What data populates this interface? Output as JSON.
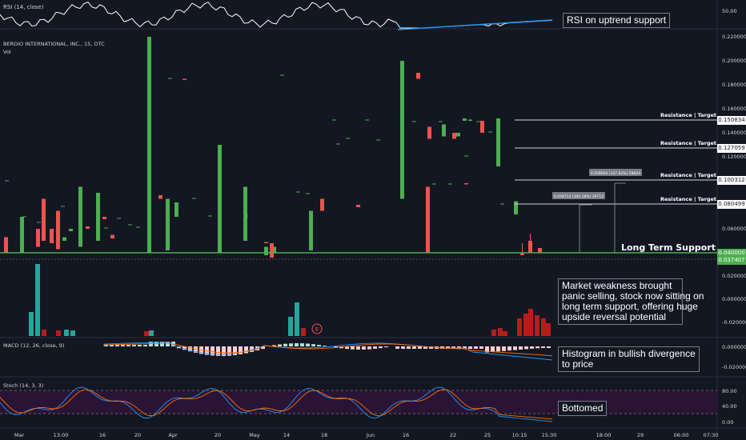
{
  "panes": {
    "rsi_label": "RSI (14, close)",
    "main_title": "BERGIO INTERNATIONAL, INC., 15, OTC",
    "vol_label": "Vol",
    "macd_label": "MACD (12, 26, close, 9)",
    "stoch_label": "Stoch (14, 3, 3)"
  },
  "annotations": {
    "rsi_note": "RSI on uptrend support",
    "support_label": "Long Term Support",
    "resistance_label": "Resistance | Target",
    "market_note": [
      "Market weakness brought",
      "panic selling, stock now sitting on",
      "long term support, offering huge",
      "upside reversal potential"
    ],
    "macd_note": [
      "Histogram in bullish divergence",
      "to price"
    ],
    "stoch_note": "Bottomed",
    "measure_1": "0.039712 (100.16%) 39712",
    "measure_2": "0.058604 (147.81%) 58604",
    "earnings_marker": "E"
  },
  "price_boxes": {
    "support": "0.040000",
    "last": "0.037407",
    "r1": "0.080499",
    "r2": "0.100312",
    "r3": "0.127059",
    "r4": "0.150834"
  },
  "colors": {
    "background": "#131722",
    "up": "#4caf50",
    "down": "#ef5350",
    "support_line": "#4caf50",
    "trendline": "#2196f3",
    "stoch_band": "#2a1436"
  },
  "chart_data": {
    "type": "candlestick",
    "title": "BERGIO INTERNATIONAL, INC., 15, OTC",
    "x_ticks": [
      "Mar",
      "13:00",
      "16",
      "20",
      "Apr",
      "20",
      "May",
      "14",
      "18",
      "Jun",
      "16",
      "22",
      "25",
      "10:15",
      "15:30",
      "18:00",
      "29",
      "06:00",
      "07:30"
    ],
    "price_axis": {
      "ticks": [
        0.22,
        0.2,
        0.18,
        0.16,
        0.14,
        0.12,
        0.1,
        0.08,
        0.06,
        0.04
      ],
      "tick_labels": [
        "0.220000",
        "0.200000",
        "0.180000",
        "0.160000",
        "0.140000",
        "0.120000",
        "0.100000",
        "0.080000",
        "0.060000",
        "0.040000"
      ],
      "ylim": [
        0.037,
        0.22
      ]
    },
    "support_level": 0.04,
    "resistance_levels": [
      0.080499,
      0.100312,
      0.127059,
      0.150834
    ],
    "candles": [
      {
        "o": 0.053,
        "c": 0.04,
        "w": 0
      },
      {
        "o": 0.04,
        "c": 0.07,
        "w": 0
      },
      {
        "o": 0.06,
        "c": 0.045,
        "w": 0
      },
      {
        "o": 0.085,
        "c": 0.05,
        "w": 0
      },
      {
        "o": 0.06,
        "c": 0.048,
        "w": 0
      },
      {
        "o": 0.075,
        "c": 0.043,
        "w": 0
      },
      {
        "o": 0.05,
        "c": 0.053,
        "w": 0
      },
      {
        "o": 0.058,
        "c": 0.06,
        "w": 0
      },
      {
        "o": 0.045,
        "c": 0.095,
        "w": 0
      },
      {
        "o": 0.062,
        "c": 0.06,
        "w": 0
      },
      {
        "o": 0.05,
        "c": 0.09,
        "w": 0
      },
      {
        "o": 0.07,
        "c": 0.068,
        "w": 0
      },
      {
        "o": 0.055,
        "c": 0.052,
        "w": 0
      },
      {
        "o": 0.04,
        "c": 0.22,
        "w": 0
      },
      {
        "o": 0.088,
        "c": 0.085,
        "w": 0
      },
      {
        "o": 0.042,
        "c": 0.085,
        "w": 0
      },
      {
        "o": 0.07,
        "c": 0.082,
        "w": 0
      },
      {
        "o": 0.185,
        "c": 0.184,
        "w": 0
      },
      {
        "o": 0.04,
        "c": 0.13,
        "w": 0
      },
      {
        "o": 0.05,
        "c": 0.095,
        "w": 0
      },
      {
        "o": 0.049,
        "c": 0.048,
        "w": 0
      },
      {
        "o": 0.04,
        "c": 0.045,
        "w": 0
      },
      {
        "o": 0.048,
        "c": 0.036,
        "w": 0
      },
      {
        "o": 0.038,
        "c": 0.045,
        "w": 0
      },
      {
        "o": 0.042,
        "c": 0.075,
        "w": 0
      },
      {
        "o": 0.085,
        "c": 0.075,
        "w": 0
      },
      {
        "o": 0.08,
        "c": 0.078,
        "w": 0
      },
      {
        "o": 0.085,
        "c": 0.2,
        "w": 0
      },
      {
        "o": 0.19,
        "c": 0.185,
        "w": 0
      },
      {
        "o": 0.145,
        "c": 0.135,
        "w": 0
      },
      {
        "o": 0.137,
        "c": 0.147,
        "w": 0
      },
      {
        "o": 0.14,
        "c": 0.135,
        "w": 0
      },
      {
        "o": 0.137,
        "c": 0.14,
        "w": 0
      },
      {
        "o": 0.15,
        "c": 0.152,
        "w": 0
      },
      {
        "o": 0.151,
        "c": 0.151,
        "w": 0
      },
      {
        "o": 0.15,
        "c": 0.14,
        "w": 0
      },
      {
        "o": 0.095,
        "c": 0.04,
        "w": 0
      },
      {
        "o": 0.098,
        "c": 0.097,
        "w": 0
      },
      {
        "o": 0.112,
        "c": 0.152,
        "w": 0
      },
      {
        "o": 0.04,
        "c": 0.038,
        "w": 0.048
      },
      {
        "o": 0.05,
        "c": 0.04,
        "w": 0.056
      },
      {
        "o": 0.044,
        "c": 0.04,
        "w": 0
      },
      {
        "o": 0.072,
        "c": 0.083,
        "w": 0
      }
    ],
    "macd_axis": {
      "tick_labels": [
        "0.000000",
        "-0.020000"
      ]
    },
    "volume_axis": {
      "tick_labels": [
        "0.020000",
        "0.000000",
        "-0.020000"
      ]
    },
    "rsi_axis": {
      "tick_labels": [
        "50.00"
      ]
    },
    "stoch_axis": {
      "tick_labels": [
        "80.00",
        "40.00",
        "0.00"
      ],
      "upper_band": 80,
      "lower_band": 20
    }
  }
}
